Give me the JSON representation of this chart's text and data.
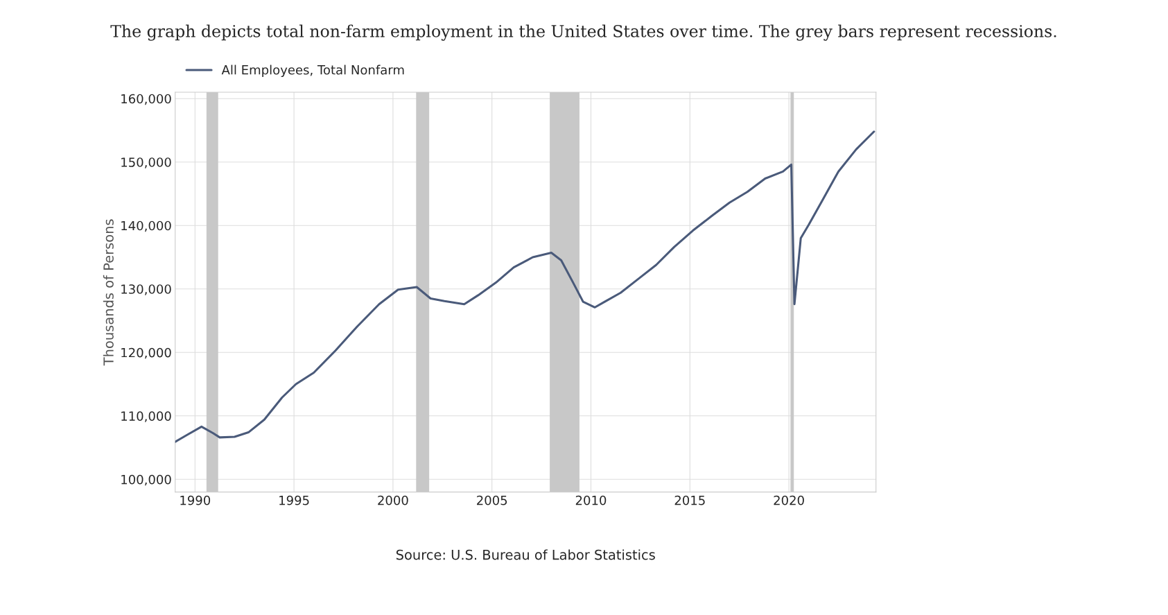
{
  "chart_data": {
    "type": "line",
    "title": "The graph depicts total non-farm employment in the United States over time. The grey bars represent recessions.",
    "ylabel": "Thousands of Persons",
    "annotations": [
      "Source: U.S. Bureau of Labor Statistics"
    ],
    "x": [
      1989.0,
      1989.6,
      1990.33,
      1990.9,
      1991.25,
      1992.0,
      1992.7,
      1993.5,
      1994.4,
      1995.1,
      1996.0,
      1997.1,
      1998.2,
      1999.3,
      2000.26,
      2001.2,
      2001.9,
      2002.6,
      2003.6,
      2004.3,
      2005.2,
      2006.1,
      2007.06,
      2008.0,
      2008.5,
      2009.1,
      2009.6,
      2010.2,
      2010.7,
      2011.5,
      2012.4,
      2013.3,
      2014.2,
      2015.15,
      2016.1,
      2017.0,
      2017.9,
      2018.8,
      2019.7,
      2020.12,
      2020.28,
      2020.6,
      2021.0,
      2021.75,
      2022.5,
      2023.4,
      2024.3
    ],
    "series": [
      {
        "name": "All Employees, Total Nonfarm",
        "color": "#4a5a7a",
        "values": [
          105900,
          107000,
          108300,
          107300,
          106600,
          106700,
          107400,
          109400,
          112900,
          115000,
          116800,
          120300,
          124100,
          127600,
          129900,
          130300,
          128500,
          128100,
          127600,
          129000,
          131000,
          133400,
          135000,
          135700,
          134500,
          131000,
          128000,
          127100,
          128000,
          129400,
          131600,
          133800,
          136600,
          139200,
          141500,
          143600,
          145300,
          147400,
          148500,
          149600,
          127600,
          138000,
          140100,
          144300,
          148500,
          152000,
          154800
        ]
      }
    ],
    "bands": [
      {
        "axis": "x",
        "from": 1990.58,
        "to": 1991.17,
        "color": "#c8c8c8"
      },
      {
        "axis": "x",
        "from": 2001.17,
        "to": 2001.83,
        "color": "#c8c8c8"
      },
      {
        "axis": "x",
        "from": 2007.92,
        "to": 2009.42,
        "color": "#c8c8c8"
      },
      {
        "axis": "x",
        "from": 2020.08,
        "to": 2020.25,
        "color": "#c8c8c8"
      }
    ],
    "xlim": [
      1989,
      2024.4
    ],
    "xticks": [
      1990,
      1995,
      2000,
      2005,
      2010,
      2015,
      2020
    ],
    "ylim": [
      98000,
      161000
    ],
    "yticks": [
      {
        "value": 100000,
        "label": "100,000"
      },
      {
        "value": 110000,
        "label": "110,000"
      },
      {
        "value": 120000,
        "label": "120,000"
      },
      {
        "value": 130000,
        "label": "130,000"
      },
      {
        "value": 140000,
        "label": "140,000"
      },
      {
        "value": 150000,
        "label": "150,000"
      },
      {
        "value": 160000,
        "label": "160,000"
      }
    ],
    "grid": true,
    "legend": "top left",
    "line_style": "solid"
  }
}
